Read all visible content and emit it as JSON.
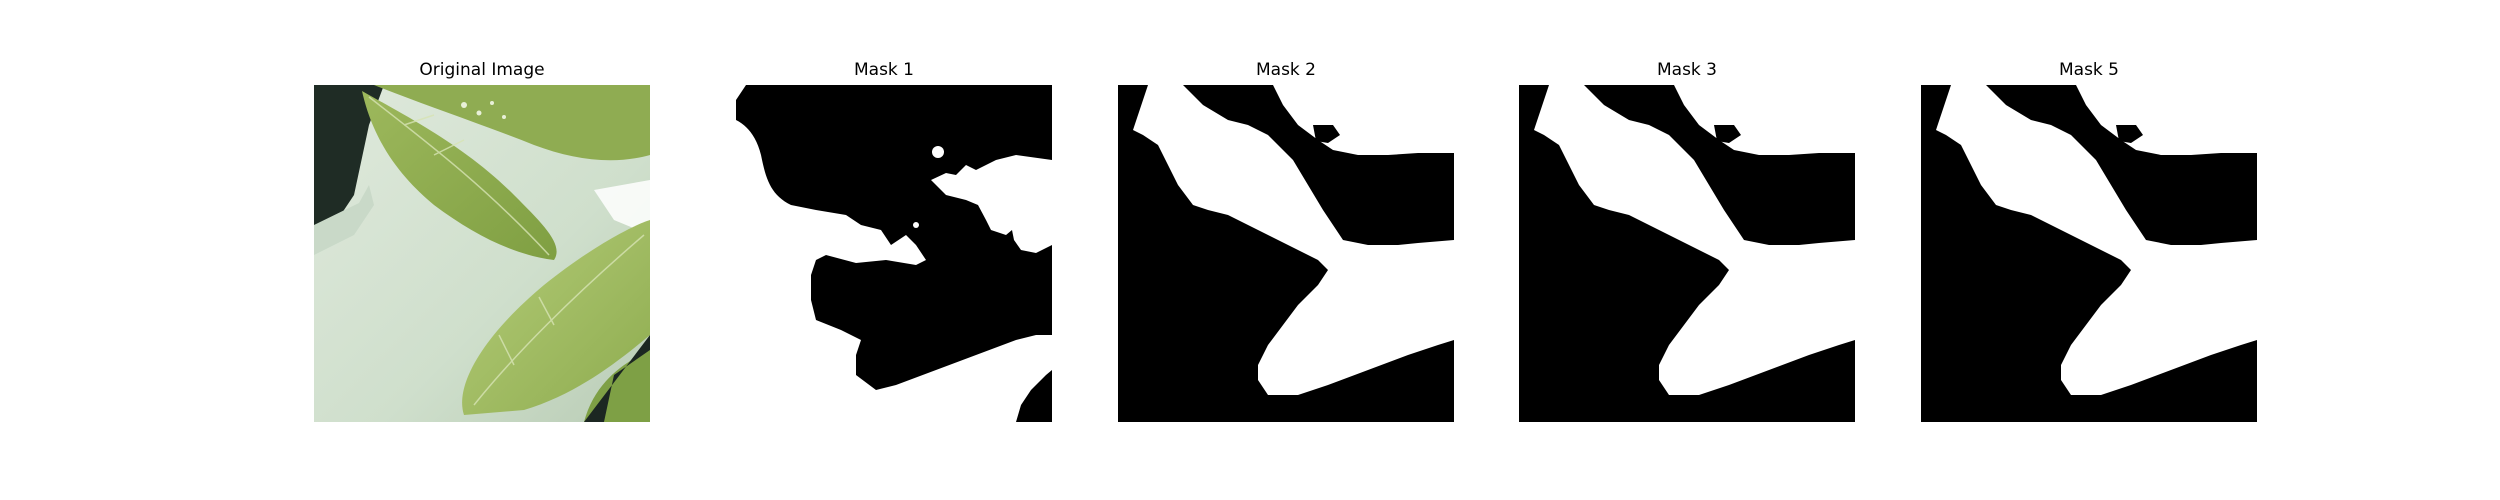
{
  "figure": {
    "panels": [
      {
        "title": "Original Image",
        "kind": "photo",
        "subject": "green leaves over white pot"
      },
      {
        "title": "Mask 1",
        "kind": "mask"
      },
      {
        "title": "Mask 2",
        "kind": "mask"
      },
      {
        "title": "Mask 3",
        "kind": "mask"
      },
      {
        "title": "Mask 5",
        "kind": "mask"
      }
    ],
    "colors": {
      "background": "#ffffff",
      "mask_foreground": "#ffffff",
      "mask_background": "#000000",
      "leaf_light": "#a7c26a",
      "leaf_dark": "#7e9e43",
      "pot": "#d4e2d1"
    }
  }
}
